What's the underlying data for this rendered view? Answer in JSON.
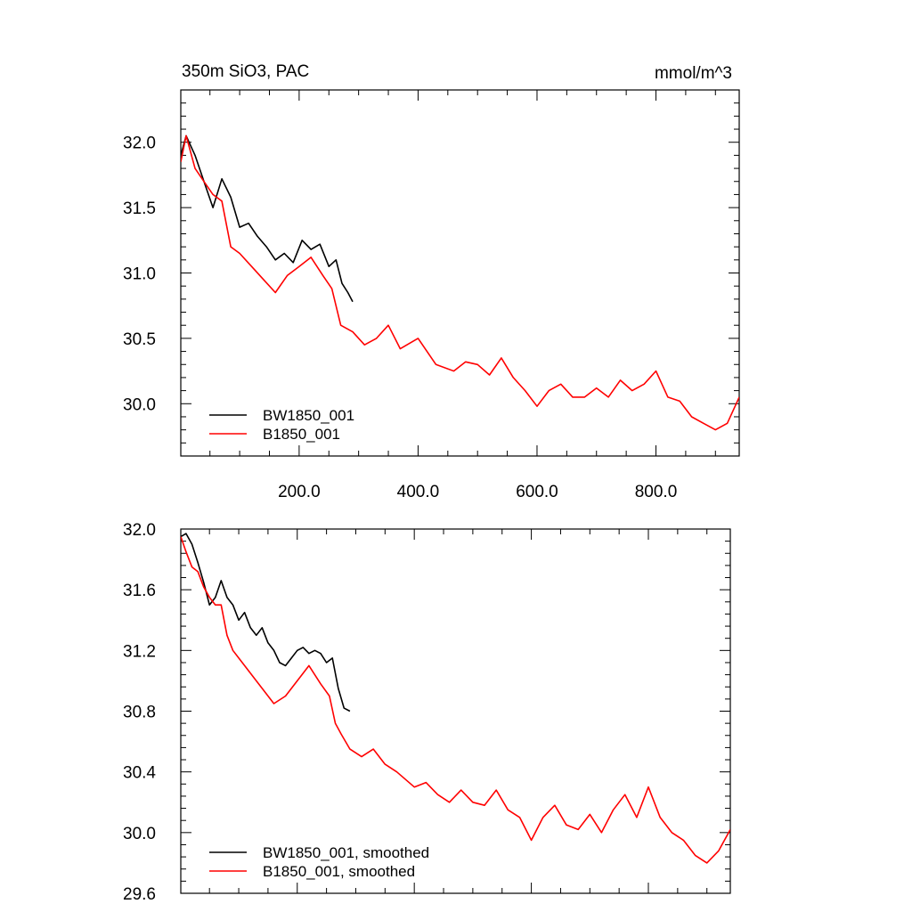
{
  "chart_data": [
    {
      "type": "line",
      "title": "350m SiO3, PAC",
      "units": "mmol/m^3",
      "xlim": [
        1,
        940
      ],
      "ylim": [
        29.6,
        32.4
      ],
      "x_ticks": [
        "200.0",
        "400.0",
        "600.0",
        "800.0"
      ],
      "y_ticks": [
        "30.0",
        "30.5",
        "31.0",
        "31.5",
        "32.0"
      ],
      "legend_position": "bottom-left",
      "series": [
        {
          "name": "BW1850_001",
          "color": "#000000",
          "x": [
            1,
            10,
            25,
            40,
            55,
            70,
            85,
            100,
            115,
            130,
            145,
            160,
            175,
            190,
            205,
            220,
            235,
            250,
            262,
            272,
            282,
            290
          ],
          "y": [
            31.9,
            32.05,
            31.9,
            31.7,
            31.5,
            31.72,
            31.58,
            31.35,
            31.38,
            31.28,
            31.2,
            31.1,
            31.15,
            31.08,
            31.25,
            31.18,
            31.22,
            31.05,
            31.1,
            30.92,
            30.85,
            30.78
          ]
        },
        {
          "name": "B1850_001",
          "color": "#ff0000",
          "x": [
            1,
            10,
            25,
            40,
            55,
            70,
            85,
            100,
            120,
            140,
            160,
            180,
            200,
            220,
            240,
            255,
            270,
            290,
            310,
            330,
            350,
            370,
            400,
            430,
            460,
            480,
            500,
            520,
            540,
            560,
            580,
            600,
            620,
            640,
            660,
            680,
            700,
            720,
            740,
            760,
            780,
            800,
            820,
            840,
            860,
            880,
            900,
            920,
            940
          ],
          "y": [
            31.85,
            32.05,
            31.8,
            31.7,
            31.6,
            31.55,
            31.2,
            31.15,
            31.05,
            30.95,
            30.85,
            30.98,
            31.05,
            31.12,
            30.98,
            30.88,
            30.6,
            30.55,
            30.45,
            30.5,
            30.6,
            30.42,
            30.5,
            30.3,
            30.25,
            30.32,
            30.3,
            30.22,
            30.35,
            30.2,
            30.1,
            29.98,
            30.1,
            30.15,
            30.05,
            30.05,
            30.12,
            30.05,
            30.18,
            30.1,
            30.15,
            30.25,
            30.05,
            30.02,
            29.9,
            29.85,
            29.8,
            29.85,
            30.05
          ]
        }
      ]
    },
    {
      "type": "line",
      "xlim": [
        1,
        940
      ],
      "ylim": [
        29.6,
        32.0
      ],
      "y_ticks": [
        "29.6",
        "30.0",
        "30.4",
        "30.8",
        "31.2",
        "31.6",
        "32.0"
      ],
      "legend_position": "bottom-left",
      "series": [
        {
          "name": "BW1850_001, smoothed",
          "color": "#000000",
          "x": [
            1,
            10,
            20,
            30,
            40,
            50,
            60,
            70,
            80,
            90,
            100,
            110,
            120,
            130,
            140,
            150,
            160,
            170,
            180,
            190,
            200,
            210,
            220,
            230,
            240,
            250,
            260,
            270,
            280,
            290
          ],
          "y": [
            31.95,
            31.97,
            31.9,
            31.78,
            31.65,
            31.5,
            31.55,
            31.66,
            31.55,
            31.5,
            31.4,
            31.45,
            31.35,
            31.3,
            31.35,
            31.25,
            31.2,
            31.12,
            31.1,
            31.15,
            31.2,
            31.22,
            31.18,
            31.2,
            31.18,
            31.12,
            31.15,
            30.95,
            30.82,
            30.8
          ]
        },
        {
          "name": "B1850_001, smoothed",
          "color": "#ff0000",
          "x": [
            1,
            10,
            20,
            30,
            40,
            50,
            60,
            70,
            80,
            90,
            100,
            120,
            140,
            160,
            180,
            200,
            220,
            240,
            255,
            265,
            275,
            290,
            310,
            330,
            350,
            370,
            400,
            420,
            440,
            460,
            480,
            500,
            520,
            540,
            560,
            580,
            600,
            620,
            640,
            660,
            680,
            700,
            720,
            740,
            760,
            780,
            800,
            820,
            840,
            860,
            880,
            900,
            920,
            940
          ],
          "y": [
            31.95,
            31.85,
            31.75,
            31.72,
            31.62,
            31.55,
            31.5,
            31.5,
            31.3,
            31.2,
            31.15,
            31.05,
            30.95,
            30.85,
            30.9,
            31.0,
            31.1,
            30.98,
            30.9,
            30.72,
            30.65,
            30.55,
            30.5,
            30.55,
            30.45,
            30.4,
            30.3,
            30.33,
            30.25,
            30.2,
            30.28,
            30.2,
            30.18,
            30.28,
            30.15,
            30.1,
            29.95,
            30.1,
            30.18,
            30.05,
            30.02,
            30.12,
            30.0,
            30.15,
            30.25,
            30.1,
            30.3,
            30.1,
            30.0,
            29.95,
            29.85,
            29.8,
            29.88,
            30.02
          ]
        }
      ]
    }
  ]
}
